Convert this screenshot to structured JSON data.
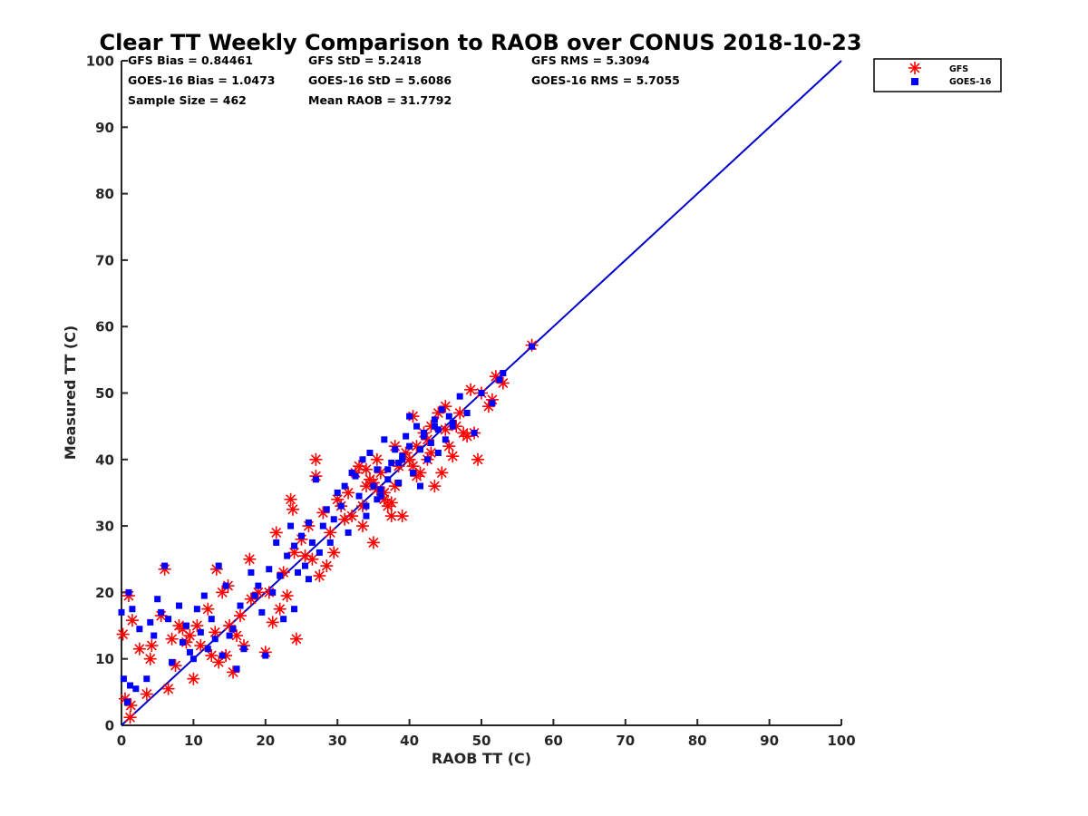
{
  "chart_data": {
    "type": "scatter",
    "title": "Clear TT Weekly Comparison to RAOB over CONUS 2018-10-23",
    "xlabel": "RAOB TT (C)",
    "ylabel": "Measured TT (C)",
    "xlim": [
      0,
      100
    ],
    "ylim": [
      0,
      100
    ],
    "xticks": [
      "0",
      "10",
      "20",
      "30",
      "40",
      "50",
      "60",
      "70",
      "80",
      "90",
      "100"
    ],
    "yticks": [
      "0",
      "10",
      "20",
      "30",
      "40",
      "50",
      "60",
      "70",
      "80",
      "90",
      "100"
    ],
    "stats": [
      "GFS Bias = 0.84461",
      "GFS StD = 5.2418",
      "GFS RMS = 5.3094",
      "GOES-16 Bias = 1.0473",
      "GOES-16 StD = 5.6086",
      "GOES-16 RMS = 5.7055",
      "Sample Size = 462",
      "Mean RAOB = 31.7792"
    ],
    "reference_line": {
      "from": [
        0,
        0
      ],
      "to": [
        100,
        100
      ],
      "color": "#0000cc"
    },
    "legend_position": "top-right",
    "colors": {
      "gfs": "#ff0000",
      "goes": "#0000ff",
      "line": "#0000cc"
    },
    "series": [
      {
        "name": "GFS",
        "marker": "asterisk",
        "x": [
          0.2,
          0.5,
          1.0,
          1.2,
          1.5,
          1.3,
          2.5,
          3.5,
          4.2,
          4.0,
          5.5,
          6.0,
          6.5,
          7.0,
          7.5,
          8.0,
          8.5,
          9.0,
          9.5,
          10.0,
          10.5,
          11.0,
          12.0,
          12.5,
          13.0,
          13.2,
          13.5,
          14.0,
          14.5,
          14.8,
          15.0,
          15.5,
          16.0,
          16.5,
          17.0,
          17.8,
          18.0,
          19.0,
          20.0,
          20.5,
          21.0,
          21.5,
          22.0,
          22.5,
          23.0,
          23.5,
          23.8,
          24.0,
          24.3,
          25.0,
          25.5,
          26.0,
          26.5,
          27.0,
          27.5,
          28.0,
          28.5,
          29.0,
          29.5,
          30.0,
          30.5,
          31.0,
          31.5,
          32.0,
          32.5,
          33.0,
          33.5,
          34.0,
          34.5,
          35.0,
          35.5,
          36.0,
          36.5,
          37.0,
          37.5,
          38.0,
          38.5,
          39.0,
          39.5,
          40.0,
          40.5,
          41.0,
          41.5,
          42.0,
          42.5,
          43.0,
          43.5,
          44.0,
          44.5,
          45.0,
          45.5,
          46.0,
          46.5,
          47.0,
          47.5,
          48.0,
          48.5,
          49.0,
          49.5,
          50.0,
          51.0,
          51.5,
          52.0,
          53.0,
          57.0,
          27.0,
          33.5,
          35.5,
          38.0,
          41.0,
          43.0,
          45.0,
          37.5,
          40.5,
          42.5,
          35.0,
          34.0,
          36.5
        ],
        "y": [
          13.7,
          4.0,
          19.5,
          1.2,
          15.8,
          3.0,
          11.5,
          4.7,
          12.0,
          10.0,
          16.5,
          23.5,
          5.5,
          13.0,
          9.0,
          15.0,
          14.5,
          12.5,
          13.5,
          7.0,
          15.0,
          12.0,
          17.5,
          10.5,
          14.0,
          23.5,
          9.5,
          20.0,
          10.5,
          21.0,
          15.0,
          8.0,
          13.5,
          16.5,
          12.0,
          25.0,
          19.0,
          20.0,
          11.0,
          20.0,
          15.5,
          29.0,
          17.5,
          23.0,
          19.5,
          34.0,
          32.5,
          26.0,
          13.0,
          28.0,
          25.5,
          30.0,
          25.0,
          37.5,
          22.5,
          32.0,
          24.0,
          29.0,
          26.0,
          34.0,
          33.0,
          31.0,
          35.0,
          31.5,
          38.0,
          39.0,
          30.0,
          36.0,
          37.0,
          27.5,
          40.0,
          38.0,
          35.0,
          33.0,
          31.5,
          36.0,
          39.0,
          31.5,
          41.0,
          40.0,
          46.5,
          42.0,
          38.0,
          44.0,
          43.0,
          41.0,
          36.0,
          47.0,
          38.0,
          48.0,
          42.0,
          40.5,
          45.0,
          47.0,
          44.0,
          43.5,
          50.5,
          44.0,
          40.0,
          50.0,
          48.0,
          49.0,
          52.5,
          51.5,
          57.2,
          40.0,
          33.0,
          35.5,
          42.0,
          37.5,
          45.0,
          44.5,
          33.5,
          39.0,
          40.0,
          36.5,
          38.5,
          34.0
        ]
      },
      {
        "name": "GOES-16",
        "marker": "square",
        "x": [
          0.0,
          0.3,
          0.8,
          1.0,
          1.2,
          1.5,
          2.0,
          2.5,
          3.5,
          4.0,
          4.5,
          5.0,
          5.5,
          6.0,
          6.5,
          7.0,
          8.0,
          8.5,
          9.0,
          9.5,
          10.0,
          10.5,
          11.0,
          11.5,
          12.0,
          12.5,
          13.0,
          13.5,
          14.0,
          14.5,
          15.0,
          15.5,
          16.0,
          16.5,
          17.0,
          18.0,
          18.5,
          19.0,
          19.5,
          20.0,
          20.5,
          21.0,
          21.5,
          22.0,
          22.5,
          23.0,
          23.5,
          24.0,
          24.5,
          25.0,
          25.5,
          26.0,
          26.5,
          27.0,
          27.5,
          28.0,
          28.5,
          29.0,
          29.5,
          30.0,
          30.5,
          31.0,
          31.5,
          32.0,
          32.5,
          33.0,
          33.5,
          34.0,
          34.5,
          35.0,
          35.5,
          36.0,
          36.5,
          37.0,
          37.5,
          38.0,
          38.5,
          39.0,
          39.5,
          40.0,
          40.5,
          41.0,
          41.5,
          42.0,
          42.5,
          43.0,
          43.5,
          44.0,
          44.5,
          45.0,
          45.5,
          46.0,
          47.0,
          48.0,
          49.0,
          50.0,
          51.5,
          52.5,
          53.0,
          57.0,
          24.0,
          26.0,
          34.0,
          36.0,
          38.5,
          40.0,
          42.0,
          44.0,
          46.0,
          37.0,
          39.0,
          41.5,
          43.5,
          35.5
        ],
        "y": [
          17.0,
          7.0,
          3.5,
          20.0,
          6.0,
          17.5,
          5.5,
          14.5,
          7.0,
          15.5,
          13.5,
          19.0,
          17.0,
          24.0,
          16.0,
          9.5,
          18.0,
          12.5,
          15.0,
          11.0,
          10.0,
          17.5,
          14.0,
          19.5,
          11.5,
          16.0,
          13.0,
          24.0,
          10.5,
          21.0,
          13.5,
          14.5,
          8.5,
          18.0,
          11.5,
          23.0,
          19.5,
          21.0,
          17.0,
          10.5,
          23.5,
          20.0,
          27.5,
          22.5,
          16.0,
          25.5,
          30.0,
          27.0,
          23.0,
          28.5,
          24.0,
          30.5,
          27.5,
          37.0,
          26.0,
          30.0,
          32.5,
          27.5,
          31.0,
          35.0,
          33.0,
          36.0,
          29.0,
          38.0,
          37.5,
          34.5,
          40.0,
          31.5,
          41.0,
          36.0,
          38.5,
          35.5,
          43.0,
          37.0,
          39.5,
          41.5,
          36.5,
          40.0,
          43.5,
          46.5,
          38.0,
          45.0,
          41.5,
          44.0,
          40.0,
          42.5,
          46.0,
          44.5,
          47.5,
          43.0,
          46.5,
          45.0,
          49.5,
          47.0,
          44.0,
          50.0,
          48.5,
          52.0,
          53.0,
          57.0,
          17.5,
          22.0,
          33.0,
          34.5,
          39.5,
          42.0,
          43.5,
          41.0,
          45.5,
          38.5,
          40.5,
          36.0,
          45.0,
          34.0
        ]
      }
    ]
  }
}
